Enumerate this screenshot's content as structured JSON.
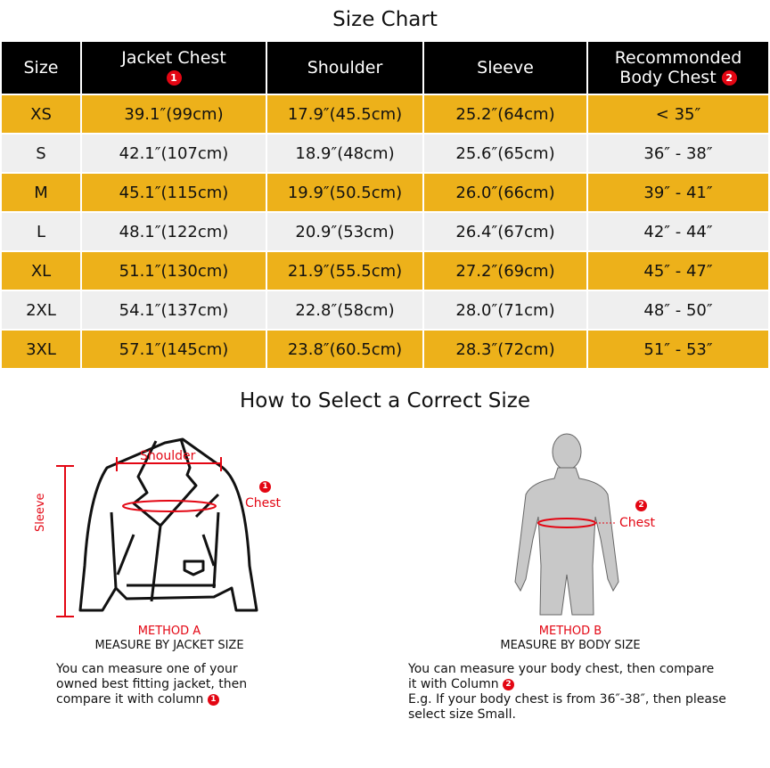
{
  "size_chart": {
    "title": "Size Chart",
    "headers": [
      "Size",
      "Jacket Chest",
      "Shoulder",
      "Sleeve",
      "Recommonded",
      "Body  Chest"
    ],
    "badge1": "1",
    "badge2": "2",
    "rows": [
      [
        "XS",
        "39.1″(99cm)",
        "17.9″(45.5cm)",
        "25.2″(64cm)",
        "< 35″"
      ],
      [
        "S",
        "42.1″(107cm)",
        "18.9″(48cm)",
        "25.6″(65cm)",
        "36″ - 38″"
      ],
      [
        "M",
        "45.1″(115cm)",
        "19.9″(50.5cm)",
        "26.0″(66cm)",
        "39″ - 41″"
      ],
      [
        "L",
        "48.1″(122cm)",
        "20.9″(53cm)",
        "26.4″(67cm)",
        "42″ - 44″"
      ],
      [
        "XL",
        "51.1″(130cm)",
        "21.9″(55.5cm)",
        "27.2″(69cm)",
        "45″ - 47″"
      ],
      [
        "2XL",
        "54.1″(137cm)",
        "22.8″(58cm)",
        "28.0″(71cm)",
        "48″ - 50″"
      ],
      [
        "3XL",
        "57.1″(145cm)",
        "23.8″(60.5cm)",
        "28.3″(72cm)",
        "51″ - 53″"
      ]
    ],
    "colors": {
      "header": "#000000",
      "odd": "#edb11a",
      "even": "#efefef",
      "accent": "#e30613"
    }
  },
  "guide": {
    "title": "How to Select a Correct Size",
    "method_a": {
      "labels": {
        "shoulder": "Shoulder",
        "chest": "Chest",
        "sleeve": "Sleeve"
      },
      "name": "METHOD A",
      "subtitle": "MEASURE BY JACKET SIZE",
      "desc": [
        "You can measure one of your",
        "owned best fitting jacket, then",
        "compare it with column"
      ]
    },
    "method_b": {
      "labels": {
        "chest": "Chest"
      },
      "name": "METHOD B",
      "subtitle": "MEASURE BY BODY SIZE",
      "desc": [
        "You can measure your body chest, then compare",
        "it with Column",
        "E.g. If your body chest is from 36″-38″, then please",
        "select size Small."
      ]
    }
  }
}
